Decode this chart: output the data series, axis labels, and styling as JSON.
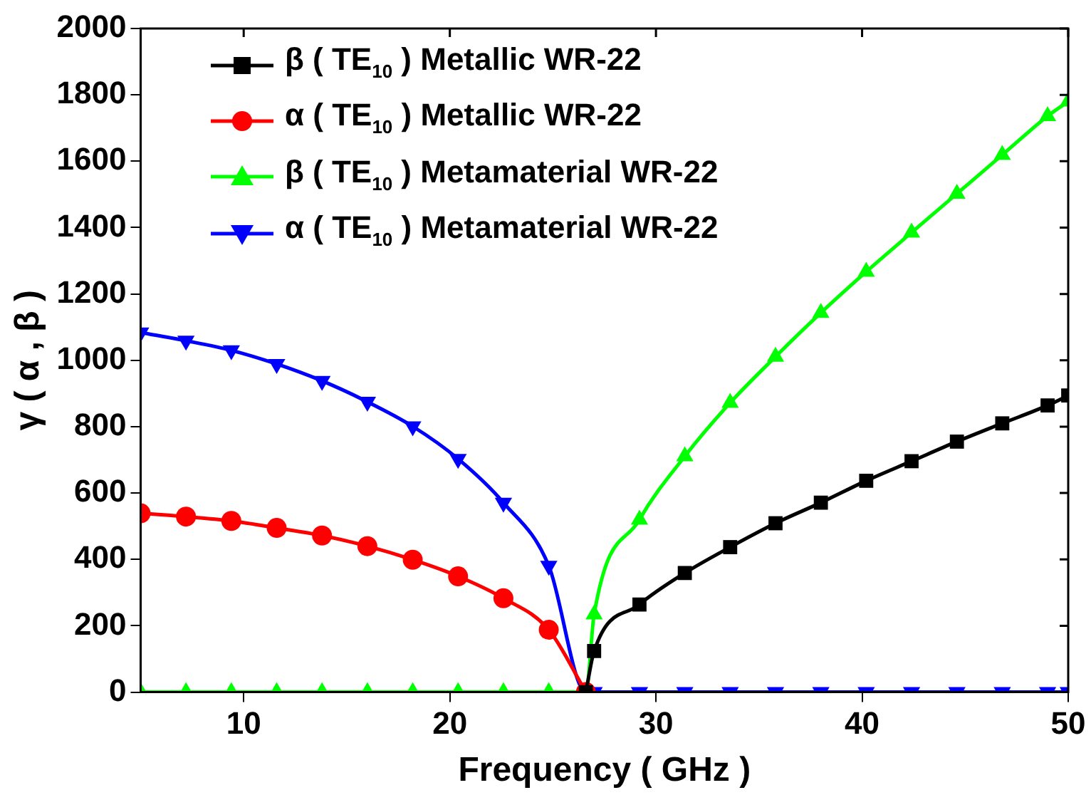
{
  "chart_data": {
    "type": "line",
    "xlabel": "Frequency ( GHz )",
    "ylabel": "γ ( α , β )",
    "xlim": [
      5,
      50
    ],
    "xticks": [
      10,
      20,
      30,
      40,
      50
    ],
    "ylim": [
      0,
      2000
    ],
    "yticks": [
      0,
      200,
      400,
      600,
      800,
      1000,
      1200,
      1400,
      1600,
      1800,
      2000
    ],
    "grid": false,
    "legend": "top left",
    "line_style": "solid",
    "series": [
      {
        "name": "β ( TE$_{10}$ ) Metallic WR-22",
        "color": "#000000",
        "marker": "square",
        "x": [
          26.6,
          27,
          29.2,
          31.4,
          33.6,
          35.8,
          38,
          40.2,
          42.4,
          44.6,
          46.8,
          49,
          50
        ],
        "values": [
          0,
          124,
          264,
          359,
          437,
          509,
          571,
          637,
          696,
          755,
          810,
          864,
          894
        ]
      },
      {
        "name": "α ( TE$_{10}$ ) Metallic WR-22",
        "color": "#ff0000",
        "marker": "circle",
        "x": [
          5,
          7.2,
          9.4,
          11.6,
          13.8,
          16,
          18.2,
          20.4,
          22.6,
          24.8,
          26.6
        ],
        "values": [
          539,
          529,
          516,
          495,
          472,
          440,
          399,
          349,
          283,
          188,
          0
        ]
      },
      {
        "name": "β ( TE$_{10}$ ) Metamaterial WR-22",
        "color": "#00ff00",
        "marker": "triangle",
        "x": [
          5,
          7.2,
          9.4,
          11.6,
          13.8,
          16,
          18.2,
          20.4,
          22.6,
          24.8,
          26.6,
          27,
          29.2,
          31.4,
          33.6,
          35.8,
          38,
          40.2,
          42.4,
          44.6,
          46.8,
          49,
          50
        ],
        "values": [
          0,
          0,
          0,
          0,
          0,
          0,
          0,
          0,
          0,
          0,
          0,
          234,
          520,
          711,
          872,
          1011,
          1143,
          1267,
          1385,
          1502,
          1619,
          1736,
          1780
        ]
      },
      {
        "name": "α ( TE$_{10}$ ) Metamaterial WR-22",
        "color": "#0000ff",
        "marker": "triangle-down",
        "x": [
          5,
          7.2,
          9.4,
          11.6,
          13.8,
          16,
          18.2,
          20.4,
          22.6,
          24.8,
          26.6,
          27,
          29.2,
          31.4,
          33.6,
          35.8,
          38,
          40.2,
          42.4,
          44.6,
          46.8,
          49,
          50
        ],
        "values": [
          1084,
          1059,
          1030,
          989,
          938,
          875,
          801,
          703,
          571,
          381,
          0,
          0,
          0,
          0,
          0,
          0,
          0,
          0,
          0,
          0,
          0,
          0,
          0
        ]
      }
    ]
  }
}
